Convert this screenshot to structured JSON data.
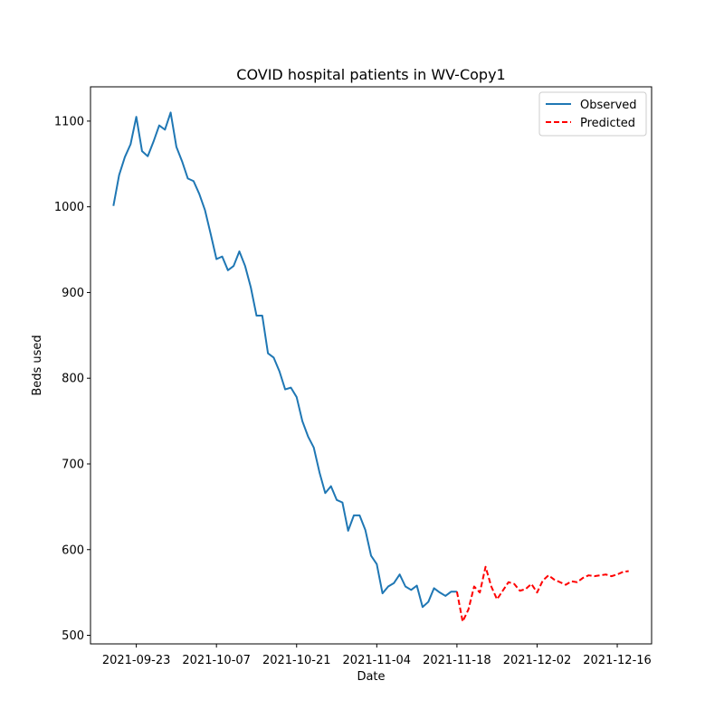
{
  "chart_data": {
    "type": "line",
    "title": "COVID hospital patients in WV-Copy1",
    "xlabel": "Date",
    "ylabel": "Beds used",
    "x_ticks": [
      "2021-09-23",
      "2021-10-07",
      "2021-10-21",
      "2021-11-04",
      "2021-11-18",
      "2021-12-02",
      "2021-12-16"
    ],
    "y_ticks": [
      500,
      600,
      700,
      800,
      900,
      1000,
      1100
    ],
    "xlim": [
      "2021-09-15",
      "2021-12-22"
    ],
    "ylim": [
      490,
      1140
    ],
    "grid": false,
    "legend_position": "top-right",
    "series": [
      {
        "name": "Observed",
        "color": "#1f77b4",
        "style": "solid",
        "x": [
          "2021-09-19",
          "2021-09-20",
          "2021-09-21",
          "2021-09-22",
          "2021-09-23",
          "2021-09-24",
          "2021-09-25",
          "2021-09-26",
          "2021-09-27",
          "2021-09-28",
          "2021-09-29",
          "2021-09-30",
          "2021-10-01",
          "2021-10-02",
          "2021-10-03",
          "2021-10-04",
          "2021-10-05",
          "2021-10-06",
          "2021-10-07",
          "2021-10-08",
          "2021-10-09",
          "2021-10-10",
          "2021-10-11",
          "2021-10-12",
          "2021-10-13",
          "2021-10-14",
          "2021-10-15",
          "2021-10-16",
          "2021-10-17",
          "2021-10-18",
          "2021-10-19",
          "2021-10-20",
          "2021-10-21",
          "2021-10-22",
          "2021-10-23",
          "2021-10-24",
          "2021-10-25",
          "2021-10-26",
          "2021-10-27",
          "2021-10-28",
          "2021-10-29",
          "2021-10-30",
          "2021-10-31",
          "2021-11-01",
          "2021-11-02",
          "2021-11-03",
          "2021-11-04",
          "2021-11-05",
          "2021-11-06",
          "2021-11-07",
          "2021-11-08",
          "2021-11-09",
          "2021-11-10",
          "2021-11-11",
          "2021-11-12",
          "2021-11-13",
          "2021-11-14",
          "2021-11-15",
          "2021-11-16",
          "2021-11-17",
          "2021-11-18"
        ],
        "y": [
          1001,
          1037,
          1058,
          1073,
          1105,
          1065,
          1059,
          1076,
          1095,
          1090,
          1110,
          1070,
          1053,
          1033,
          1030,
          1015,
          996,
          968,
          939,
          942,
          926,
          931,
          948,
          931,
          906,
          873,
          873,
          829,
          824,
          808,
          787,
          789,
          778,
          750,
          732,
          719,
          690,
          666,
          674,
          658,
          655,
          622,
          640,
          640,
          623,
          593,
          583,
          549,
          557,
          561,
          571,
          557,
          553,
          558,
          533,
          539,
          555,
          550,
          546,
          551,
          551
        ]
      },
      {
        "name": "Predicted",
        "color": "#ff0000",
        "style": "dashed",
        "x": [
          "2021-11-18",
          "2021-11-19",
          "2021-11-20",
          "2021-11-21",
          "2021-11-22",
          "2021-11-23",
          "2021-11-24",
          "2021-11-25",
          "2021-11-26",
          "2021-11-27",
          "2021-11-28",
          "2021-11-29",
          "2021-11-30",
          "2021-12-01",
          "2021-12-02",
          "2021-12-03",
          "2021-12-04",
          "2021-12-05",
          "2021-12-06",
          "2021-12-07",
          "2021-12-08",
          "2021-12-09",
          "2021-12-10",
          "2021-12-11",
          "2021-12-12",
          "2021-12-13",
          "2021-12-14",
          "2021-12-15",
          "2021-12-16",
          "2021-12-17",
          "2021-12-18"
        ],
        "y": [
          551,
          516,
          530,
          557,
          550,
          580,
          557,
          542,
          552,
          562,
          560,
          552,
          554,
          560,
          550,
          564,
          570,
          565,
          562,
          559,
          563,
          562,
          567,
          570,
          569,
          570,
          571,
          569,
          571,
          574,
          575
        ]
      }
    ]
  }
}
